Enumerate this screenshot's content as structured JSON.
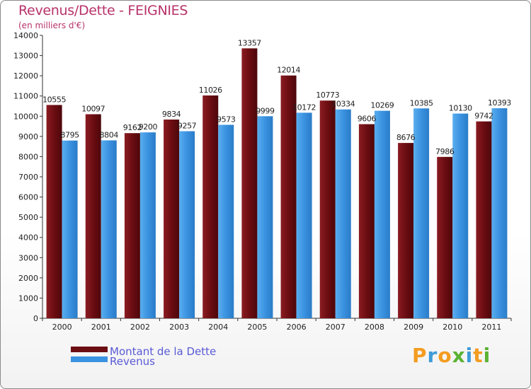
{
  "header": {
    "title": "Revenus/Dette - FEIGNIES",
    "subtitle": "(en milliers d'€)"
  },
  "legend": {
    "items": [
      {
        "label": "Montant de la Dette",
        "color": "#6b0d12"
      },
      {
        "label": "Revenus",
        "color": "#3a92e0"
      }
    ]
  },
  "logo": {
    "text": "Proxiti",
    "letters": [
      {
        "ch": "P",
        "color": "#f39c1f"
      },
      {
        "ch": "r",
        "color": "#3e9bd8"
      },
      {
        "ch": "o",
        "color": "#f39c1f"
      },
      {
        "ch": "x",
        "color": "#5bb333"
      },
      {
        "ch": "i",
        "color": "#3e9bd8"
      },
      {
        "ch": "t",
        "color": "#f39c1f"
      },
      {
        "ch": "i",
        "color": "#5bb333"
      }
    ]
  },
  "chart_data": {
    "type": "bar",
    "title": "Revenus/Dette - FEIGNIES",
    "subtitle": "(en milliers d'€)",
    "xlabel": "",
    "ylabel": "",
    "ylim": [
      0,
      14000
    ],
    "ytick_step": 1000,
    "grid": false,
    "legend_position": "bottom-left",
    "categories": [
      "2000",
      "2001",
      "2002",
      "2003",
      "2004",
      "2005",
      "2006",
      "2007",
      "2008",
      "2009",
      "2010",
      "2011"
    ],
    "series": [
      {
        "name": "Montant de la Dette",
        "color": "#6b0d12",
        "values": [
          10555,
          10097,
          9162,
          9834,
          11026,
          13357,
          12014,
          10773,
          9606,
          8676,
          7986,
          9742
        ]
      },
      {
        "name": "Revenus",
        "color": "#3a92e0",
        "values": [
          8795,
          8804,
          9200,
          9257,
          9573,
          9999,
          10172,
          10334,
          10269,
          10385,
          10130,
          10393
        ]
      }
    ]
  }
}
